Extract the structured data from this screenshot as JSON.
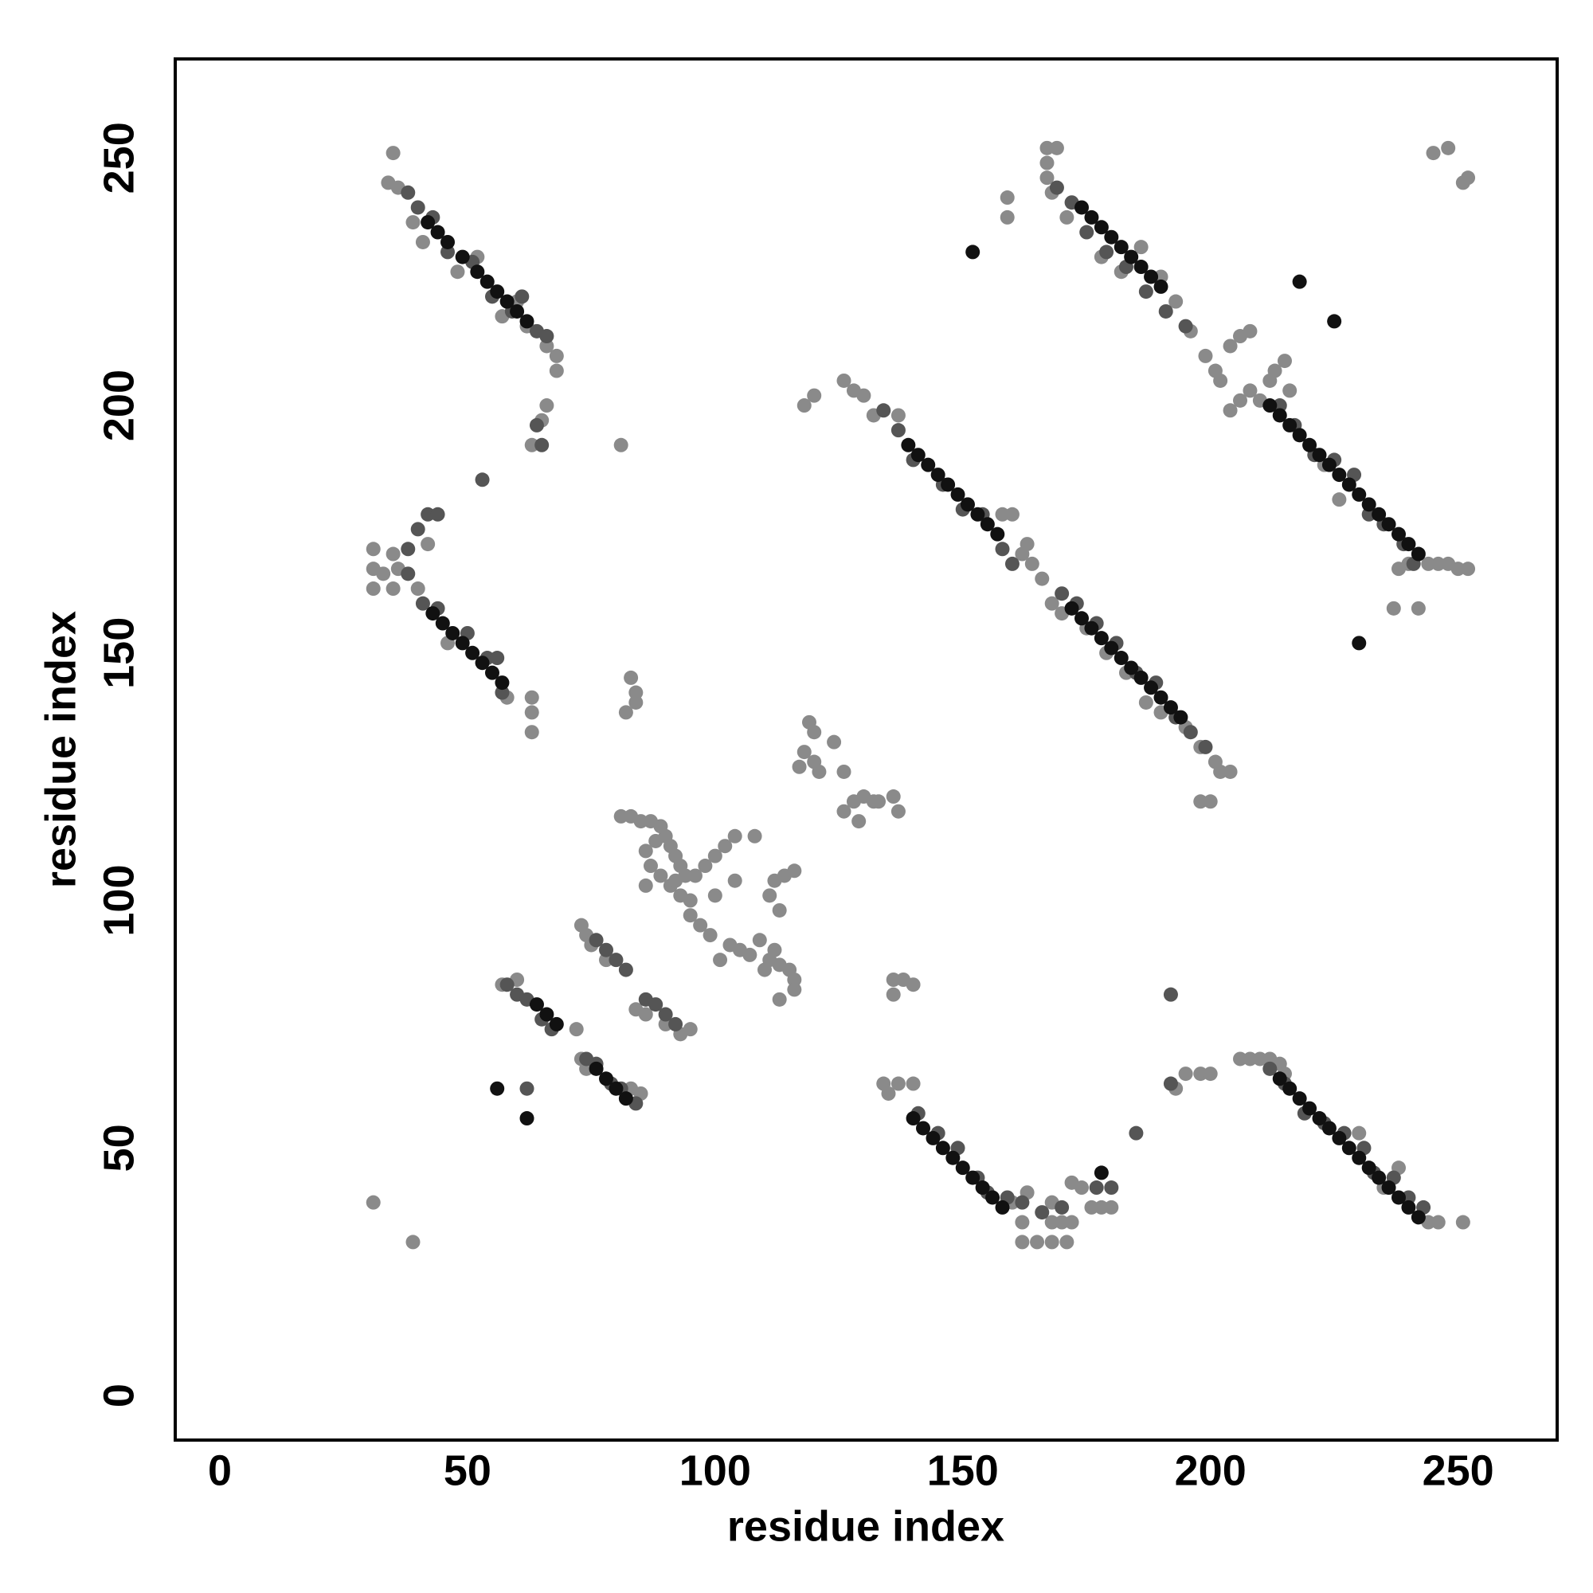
{
  "chart_data": {
    "type": "scatter",
    "xlabel": "residue index",
    "ylabel": "residue index",
    "xlim": [
      -9,
      270
    ],
    "ylim": [
      -9,
      270
    ],
    "xticks": [
      0,
      50,
      100,
      150,
      200,
      250
    ],
    "yticks": [
      0,
      50,
      100,
      150,
      200,
      250
    ],
    "grid": false,
    "series": [
      {
        "color": "#8a8a8a",
        "x": [
          35,
          34,
          36,
          39,
          41,
          48,
          52,
          57,
          60,
          62,
          66,
          68,
          68,
          66,
          63,
          65,
          31,
          31,
          31,
          33,
          35,
          35,
          36,
          40,
          42,
          46,
          58,
          63,
          63,
          63,
          31,
          39,
          81,
          82,
          84,
          83,
          84,
          81,
          83,
          85,
          87,
          89,
          90,
          91,
          92,
          93,
          94,
          88,
          86,
          87,
          89,
          91,
          93,
          95,
          92,
          86,
          96,
          98,
          100,
          102,
          104,
          108,
          95,
          97,
          99,
          103,
          107,
          111,
          113,
          115,
          116,
          116,
          113,
          105,
          109,
          112,
          110,
          113,
          112,
          114,
          116,
          111,
          104,
          100,
          101,
          73,
          74,
          75,
          78,
          84,
          86,
          90,
          93,
          95,
          57,
          60,
          72,
          73,
          74,
          83,
          85,
          119,
          120,
          118,
          120,
          117,
          121,
          124,
          126,
          128,
          126,
          130,
          132,
          133,
          129,
          136,
          137,
          118,
          120,
          126,
          128,
          130,
          132,
          137,
          136,
          138,
          140,
          136,
          134,
          137,
          140,
          135,
          162,
          164,
          166,
          168,
          170,
          175,
          179,
          183,
          187,
          190,
          195,
          198,
          201,
          202,
          204,
          200,
          198,
          160,
          158,
          163,
          167,
          167,
          169,
          167,
          168,
          171,
          178,
          182,
          186,
          190,
          193,
          196,
          199,
          201,
          202,
          204,
          206,
          208,
          204,
          206,
          208,
          210,
          212,
          213,
          215,
          216,
          159,
          159,
          238,
          240,
          244,
          246,
          248,
          250,
          252,
          237,
          242,
          245,
          248,
          251,
          252,
          223,
          226,
          160,
          162,
          162,
          165,
          168,
          171,
          168,
          170,
          172,
          168,
          172,
          174,
          176,
          178,
          180,
          163,
          206,
          208,
          210,
          212,
          214,
          195,
          198,
          200,
          193,
          215,
          238,
          230,
          244,
          246,
          251,
          235
        ],
        "y": [
          251,
          245,
          244,
          237,
          233,
          227,
          230,
          218,
          221,
          216,
          212,
          210,
          207,
          200,
          192,
          197,
          171,
          167,
          163,
          166,
          170,
          163,
          167,
          163,
          172,
          152,
          141,
          141,
          138,
          134,
          39,
          31,
          192,
          138,
          142,
          145,
          140,
          117,
          117,
          116,
          116,
          115,
          113,
          111,
          109,
          107,
          105,
          112,
          110,
          107,
          105,
          103,
          101,
          100,
          104,
          103,
          105,
          107,
          109,
          111,
          113,
          113,
          97,
          95,
          93,
          91,
          89,
          88,
          87,
          86,
          84,
          82,
          80,
          90,
          92,
          90,
          86,
          98,
          104,
          105,
          106,
          101,
          104,
          101,
          88,
          95,
          93,
          91,
          88,
          78,
          77,
          75,
          73,
          74,
          83,
          84,
          74,
          68,
          66,
          62,
          61,
          136,
          134,
          130,
          128,
          127,
          126,
          132,
          126,
          120,
          118,
          121,
          120,
          120,
          116,
          121,
          118,
          200,
          202,
          205,
          203,
          202,
          198,
          198,
          84,
          84,
          83,
          81,
          63,
          63,
          63,
          61,
          170,
          168,
          165,
          160,
          158,
          155,
          150,
          146,
          140,
          138,
          135,
          131,
          128,
          126,
          126,
          120,
          120,
          178,
          178,
          172,
          252,
          249,
          252,
          246,
          243,
          238,
          230,
          227,
          232,
          226,
          221,
          215,
          210,
          207,
          205,
          212,
          214,
          215,
          199,
          201,
          203,
          201,
          205,
          207,
          209,
          203,
          242,
          238,
          167,
          168,
          168,
          168,
          168,
          167,
          167,
          159,
          159,
          251,
          252,
          245,
          246,
          188,
          181,
          39,
          35,
          31,
          31,
          31,
          31,
          35,
          35,
          35,
          39,
          43,
          42,
          38,
          38,
          38,
          41,
          68,
          68,
          68,
          68,
          67,
          65,
          65,
          65,
          62,
          65,
          46,
          53,
          35,
          35,
          35,
          42
        ]
      },
      {
        "color": "#555555",
        "x": [
          38,
          40,
          43,
          46,
          51,
          55,
          59,
          61,
          64,
          66,
          38,
          40,
          42,
          44,
          38,
          41,
          44,
          50,
          54,
          56,
          57,
          134,
          137,
          140,
          146,
          150,
          154,
          158,
          160,
          170,
          173,
          177,
          181,
          185,
          189,
          193,
          196,
          199,
          169,
          172,
          175,
          179,
          183,
          187,
          191,
          195,
          214,
          217,
          221,
          225,
          229,
          232,
          235,
          239,
          241,
          141,
          145,
          149,
          153,
          155,
          159,
          162,
          166,
          170,
          177,
          180,
          212,
          215,
          219,
          223,
          227,
          231,
          233,
          237,
          240,
          243,
          58,
          60,
          62,
          65,
          67,
          74,
          76,
          79,
          81,
          84,
          76,
          78,
          80,
          82,
          86,
          88,
          90,
          92,
          53,
          64,
          65,
          192,
          185,
          192,
          62
        ],
        "y": [
          243,
          240,
          238,
          231,
          229,
          222,
          219,
          222,
          215,
          214,
          171,
          175,
          178,
          178,
          166,
          160,
          159,
          154,
          149,
          149,
          142,
          199,
          195,
          189,
          184,
          179,
          178,
          171,
          168,
          162,
          160,
          156,
          152,
          146,
          144,
          137,
          134,
          131,
          244,
          241,
          235,
          231,
          228,
          223,
          219,
          216,
          200,
          196,
          190,
          189,
          186,
          178,
          176,
          172,
          168,
          57,
          53,
          50,
          44,
          41,
          40,
          39,
          37,
          38,
          42,
          42,
          66,
          63,
          57,
          55,
          53,
          50,
          45,
          44,
          40,
          38,
          83,
          81,
          80,
          76,
          74,
          68,
          67,
          63,
          62,
          59,
          92,
          90,
          88,
          86,
          80,
          79,
          77,
          75,
          185,
          196,
          192,
          81,
          53,
          63,
          62
        ]
      },
      {
        "color": "#111111",
        "x": [
          42,
          44,
          46,
          49,
          52,
          54,
          56,
          58,
          60,
          62,
          43,
          45,
          47,
          49,
          51,
          53,
          55,
          57,
          139,
          141,
          143,
          145,
          147,
          149,
          151,
          153,
          155,
          157,
          172,
          174,
          176,
          178,
          180,
          182,
          184,
          186,
          188,
          190,
          192,
          194,
          174,
          176,
          178,
          180,
          182,
          184,
          186,
          188,
          190,
          212,
          214,
          216,
          218,
          220,
          222,
          224,
          226,
          228,
          230,
          232,
          234,
          236,
          238,
          240,
          242,
          140,
          142,
          144,
          146,
          148,
          150,
          152,
          154,
          156,
          158,
          214,
          216,
          218,
          220,
          222,
          224,
          226,
          228,
          230,
          232,
          234,
          236,
          238,
          240,
          242,
          64,
          66,
          68,
          76,
          78,
          80,
          82,
          178,
          56,
          62,
          152,
          230,
          218,
          225
        ],
        "y": [
          237,
          235,
          233,
          230,
          227,
          225,
          223,
          221,
          219,
          217,
          158,
          156,
          154,
          152,
          150,
          148,
          146,
          144,
          192,
          190,
          188,
          186,
          184,
          182,
          180,
          178,
          176,
          174,
          159,
          157,
          155,
          153,
          151,
          149,
          147,
          145,
          143,
          141,
          139,
          137,
          240,
          238,
          236,
          234,
          232,
          230,
          228,
          226,
          224,
          200,
          198,
          196,
          194,
          192,
          190,
          188,
          186,
          184,
          182,
          180,
          178,
          176,
          174,
          172,
          170,
          56,
          54,
          52,
          50,
          48,
          46,
          44,
          42,
          40,
          38,
          64,
          62,
          60,
          58,
          56,
          54,
          52,
          50,
          48,
          46,
          44,
          42,
          40,
          38,
          36,
          79,
          77,
          75,
          66,
          64,
          62,
          60,
          45,
          62,
          56,
          231,
          152,
          225,
          217
        ]
      }
    ]
  }
}
